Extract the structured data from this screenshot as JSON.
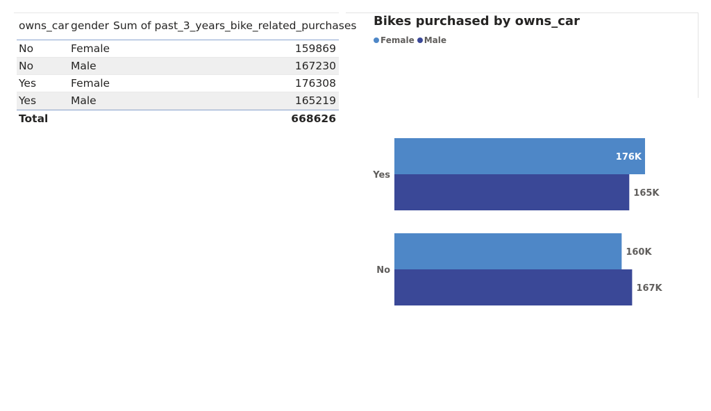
{
  "table": {
    "headers": [
      "owns_car",
      "gender",
      "Sum of past_3_years_bike_related_purchases"
    ],
    "rows": [
      {
        "owns_car": "No",
        "gender": "Female",
        "sum": "159869"
      },
      {
        "owns_car": "No",
        "gender": "Male",
        "sum": "167230"
      },
      {
        "owns_car": "Yes",
        "gender": "Female",
        "sum": "176308"
      },
      {
        "owns_car": "Yes",
        "gender": "Male",
        "sum": "165219"
      }
    ],
    "total_label": "Total",
    "total_value": "668626"
  },
  "chart_data": {
    "type": "bar",
    "orientation": "horizontal",
    "title": "Bikes purchased by owns_car",
    "categories": [
      "Yes",
      "No"
    ],
    "series": [
      {
        "name": "Female",
        "color": "#4e87c7",
        "values": [
          176308,
          159869
        ],
        "labels": [
          "176K",
          "160K"
        ]
      },
      {
        "name": "Male",
        "color": "#3a4897",
        "values": [
          165219,
          167230
        ],
        "labels": [
          "165K",
          "167K"
        ]
      }
    ],
    "xlim": [
      0,
      176308
    ],
    "legend": "top-left",
    "grid": false,
    "xlabel": "",
    "ylabel": ""
  }
}
